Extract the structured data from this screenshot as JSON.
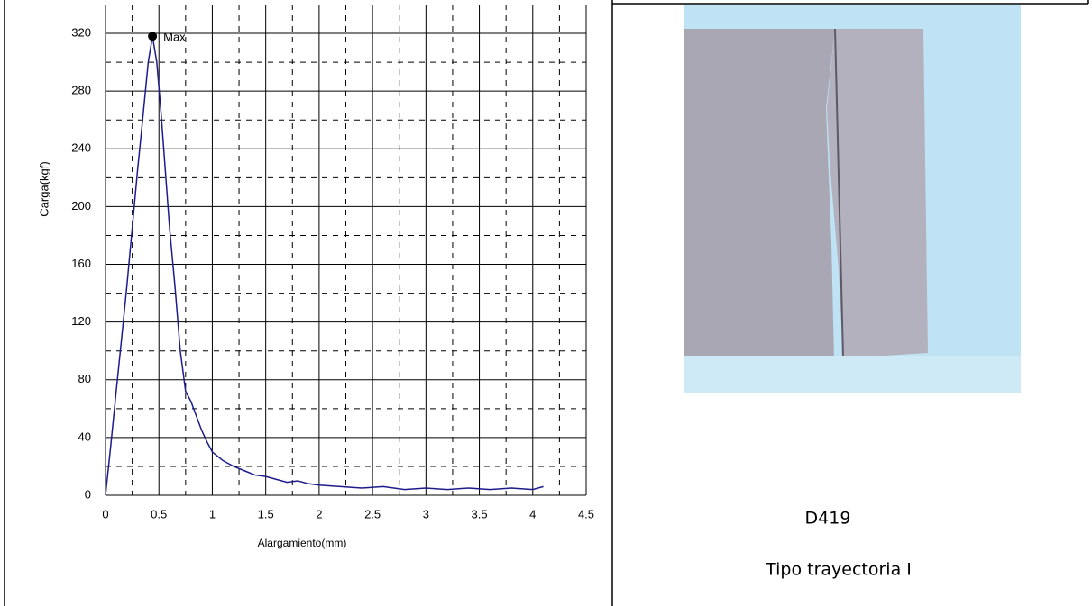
{
  "chart_data": {
    "type": "line",
    "y_label": "Carga(kgf)",
    "x_label": "Alargamiento(mm)",
    "x": [
      0,
      0.05,
      0.1,
      0.15,
      0.2,
      0.25,
      0.3,
      0.35,
      0.4,
      0.44,
      0.48,
      0.52,
      0.56,
      0.6,
      0.65,
      0.7,
      0.75,
      0.8,
      0.85,
      0.9,
      0.95,
      1.0,
      1.1,
      1.2,
      1.3,
      1.4,
      1.5,
      1.6,
      1.7,
      1.8,
      1.9,
      2.0,
      2.2,
      2.4,
      2.6,
      2.8,
      3.0,
      3.2,
      3.4,
      3.6,
      3.8,
      4.0,
      4.1
    ],
    "values": [
      0,
      35,
      72,
      108,
      145,
      185,
      225,
      262,
      300,
      318,
      300,
      265,
      225,
      185,
      145,
      100,
      72,
      65,
      55,
      45,
      37,
      30,
      24,
      20,
      17,
      14,
      13,
      11,
      9,
      10,
      8,
      7,
      6,
      5,
      6,
      4,
      5,
      4,
      5,
      4,
      5,
      4,
      6
    ],
    "color": "#1c1c8c",
    "xlim": [
      0,
      4.5
    ],
    "xticks": [
      0,
      0.5,
      1,
      1.5,
      2,
      2.5,
      3,
      3.5,
      4,
      4.5
    ],
    "ylim": [
      0,
      340
    ],
    "yticks": [
      0,
      40,
      80,
      120,
      160,
      200,
      240,
      280,
      320
    ],
    "grid": true,
    "annotations": [
      {
        "text": "Max",
        "x": 0.44,
        "y": 318
      }
    ]
  },
  "image_cell": {
    "specimen": "D419",
    "caption": "Tipo trayectoria I"
  }
}
